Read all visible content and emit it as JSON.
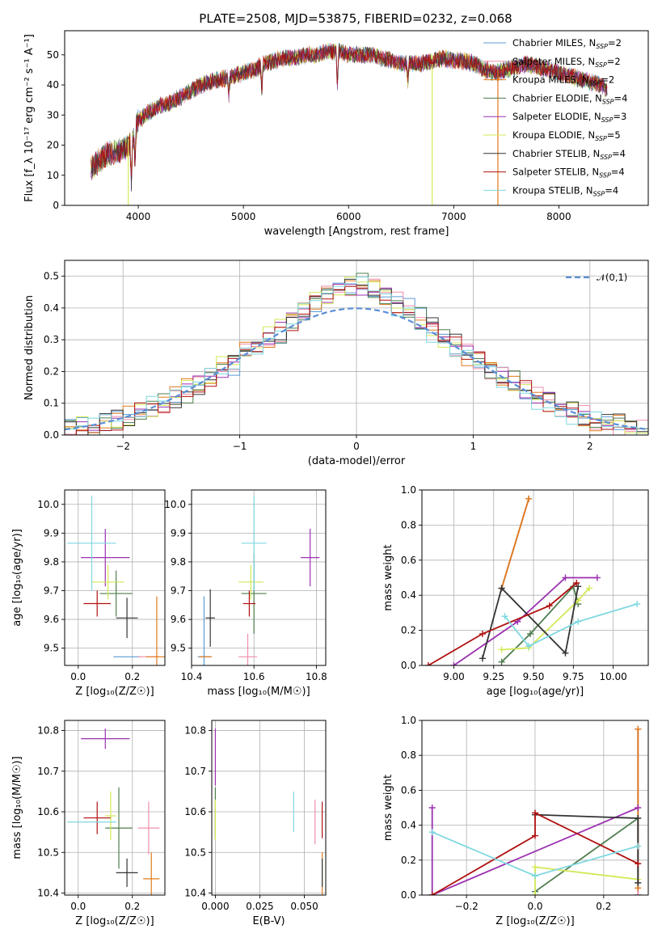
{
  "figure": {
    "title": "PLATE=2508, MJD=53875, FIBERID=0232, z=0.068",
    "colors": [
      "#5b9bd5",
      "#f08fa8",
      "#e07b1a",
      "#4e7d4e",
      "#9b30b0",
      "#d4e857",
      "#333333",
      "#b01010",
      "#7fd8e0"
    ]
  },
  "chart_data": [
    {
      "id": "spectrum",
      "type": "line",
      "title": "PLATE=2508, MJD=53875, FIBERID=0232, z=0.068",
      "xlabel": "wavelength [Angstrom, rest frame]",
      "ylabel": "Flux [f_λ 10⁻¹⁷ erg cm⁻² s⁻¹ A⁻¹]",
      "xlim": [
        3300,
        8850
      ],
      "ylim": [
        0,
        58
      ],
      "xticks": [
        4000,
        5000,
        6000,
        7000,
        8000
      ],
      "yticks": [
        0,
        10,
        20,
        30,
        40,
        50
      ],
      "grid": false,
      "legend": "upper-right",
      "continuum": {
        "x": [
          3550,
          3600,
          3700,
          3800,
          3900,
          3950,
          4000,
          4100,
          4200,
          4300,
          4400,
          4500,
          4600,
          4700,
          4800,
          4900,
          5000,
          5100,
          5200,
          5300,
          5400,
          5500,
          5600,
          5700,
          5800,
          5900,
          6000,
          6100,
          6200,
          6300,
          6400,
          6500,
          6600,
          6700,
          6800,
          6900,
          7000,
          7100,
          7200,
          7300,
          7400,
          7500,
          7600,
          7700,
          7800,
          7900,
          8000,
          8100,
          8200,
          8300,
          8400,
          8460
        ],
        "y": [
          12,
          14,
          17,
          18,
          19,
          22,
          28,
          31,
          33,
          34,
          36,
          38,
          40,
          41,
          42,
          43,
          44,
          45,
          47,
          48,
          49,
          49,
          50,
          50,
          51,
          51,
          50,
          50,
          50,
          49,
          48,
          47,
          47,
          47,
          48,
          49,
          48,
          48,
          47,
          45,
          44,
          45,
          46,
          47,
          46,
          45,
          44,
          43,
          42,
          41,
          40,
          38
        ]
      },
      "dips": [
        {
          "x": 3934,
          "y": 8
        },
        {
          "x": 3969,
          "y": 14
        },
        {
          "x": 4861,
          "y": 36
        },
        {
          "x": 5175,
          "y": 38
        },
        {
          "x": 5893,
          "y": 40
        },
        {
          "x": 6563,
          "y": 40
        }
      ],
      "spikes": [
        {
          "x": 3905,
          "y_min": 0,
          "y_max": 22,
          "series": 5
        },
        {
          "x": 6795,
          "y_min": 0,
          "y_max": 47,
          "series": 5
        },
        {
          "x": 7420,
          "y_min": 0,
          "y_max": 45,
          "series": 2
        }
      ],
      "series": [
        {
          "name": "Chabrier MILES, N_SSP=2"
        },
        {
          "name": "Salpeter MILES, N_SSP=2"
        },
        {
          "name": "Kroupa MILES, N_SSP=2"
        },
        {
          "name": "Chabrier ELODIE, N_SSP=4"
        },
        {
          "name": "Salpeter ELODIE, N_SSP=3"
        },
        {
          "name": "Kroupa ELODIE, N_SSP=5"
        },
        {
          "name": "Chabrier STELIB, N_SSP=4"
        },
        {
          "name": "Salpeter STELIB, N_SSP=4"
        },
        {
          "name": "Kroupa STELIB, N_SSP=4"
        }
      ]
    },
    {
      "id": "residuals",
      "type": "line",
      "xlabel": "(data-model)/error",
      "ylabel": "Normed distribution",
      "xlim": [
        -2.5,
        2.5
      ],
      "ylim": [
        0,
        0.55
      ],
      "xticks": [
        -2,
        -1,
        0,
        1,
        2
      ],
      "yticks": [
        0.0,
        0.1,
        0.2,
        0.3,
        0.4,
        0.5
      ],
      "grid": true,
      "legend": "upper-right",
      "bin_width": 0.1,
      "gaussian": {
        "label": "𝒩(0,1)",
        "mean": 0,
        "sigma": 1
      },
      "spread": 0.035
    },
    {
      "id": "age-vs-z",
      "type": "scatter",
      "xlabel": "Z [log₁₀(Z/Z☉)]",
      "ylabel": "age  [log₁₀(age/yr)]",
      "xlim": [
        -0.05,
        0.32
      ],
      "ylim": [
        9.44,
        10.05
      ],
      "xticks": [
        0.0,
        0.2
      ],
      "yticks": [
        9.5,
        9.6,
        9.7,
        9.8,
        9.9,
        10.0
      ],
      "grid": true,
      "points": [
        {
          "x": 0.18,
          "y": 9.47,
          "xerr": 0.05,
          "yerr": 0.0,
          "series": 0
        },
        {
          "x": 0.26,
          "y": 9.47,
          "xerr": 0.04,
          "yerr": 0.0,
          "series": 1
        },
        {
          "x": 0.29,
          "y": 9.47,
          "xerr": 0.04,
          "yerr": 0.21,
          "series": 2
        },
        {
          "x": 0.14,
          "y": 9.69,
          "xerr": 0.06,
          "yerr": 0.08,
          "series": 3
        },
        {
          "x": 0.1,
          "y": 9.815,
          "xerr": 0.09,
          "yerr": 0.1,
          "series": 4
        },
        {
          "x": 0.11,
          "y": 9.73,
          "xerr": 0.06,
          "yerr": 0.06,
          "series": 5
        },
        {
          "x": 0.18,
          "y": 9.605,
          "xerr": 0.04,
          "yerr": 0.07,
          "series": 6
        },
        {
          "x": 0.07,
          "y": 9.655,
          "xerr": 0.05,
          "yerr": 0.045,
          "series": 7
        },
        {
          "x": 0.05,
          "y": 9.865,
          "xerr": 0.09,
          "yerr": 0.165,
          "series": 8
        }
      ]
    },
    {
      "id": "age-vs-mass",
      "type": "scatter",
      "xlabel": "mass [log₁₀(M/M☉)]",
      "ylabel": "",
      "xlim": [
        10.4,
        10.83
      ],
      "ylim": [
        9.44,
        10.05
      ],
      "xticks": [
        10.4,
        10.6,
        10.8
      ],
      "yticks": [
        9.5,
        9.6,
        9.7,
        9.8,
        9.9,
        10.0
      ],
      "grid": true,
      "points": [
        {
          "x": 10.44,
          "y": 9.47,
          "xerr": 0.02,
          "yerr": 0.21,
          "series": 0
        },
        {
          "x": 10.58,
          "y": 9.47,
          "xerr": 0.03,
          "yerr": 0.08,
          "series": 1
        },
        {
          "x": 10.445,
          "y": 9.47,
          "xerr": 0.02,
          "yerr": 0.0,
          "series": 2
        },
        {
          "x": 10.6,
          "y": 9.69,
          "xerr": 0.04,
          "yerr": 0.14,
          "series": 3
        },
        {
          "x": 10.78,
          "y": 9.815,
          "xerr": 0.03,
          "yerr": 0.1,
          "series": 4
        },
        {
          "x": 10.59,
          "y": 9.73,
          "xerr": 0.04,
          "yerr": 0.06,
          "series": 5
        },
        {
          "x": 10.46,
          "y": 9.605,
          "xerr": 0.015,
          "yerr": 0.1,
          "series": 6
        },
        {
          "x": 10.585,
          "y": 9.655,
          "xerr": 0.02,
          "yerr": 0.045,
          "series": 7
        },
        {
          "x": 10.6,
          "y": 9.865,
          "xerr": 0.04,
          "yerr": 0.165,
          "series": 8
        }
      ]
    },
    {
      "id": "weight-vs-age",
      "type": "line",
      "xlabel": "age  [log₁₀(age/yr)]",
      "ylabel": "mass weight",
      "xlim": [
        8.8,
        10.22
      ],
      "ylim": [
        0,
        1.0
      ],
      "xticks": [
        9.0,
        9.25,
        9.5,
        9.75,
        10.0
      ],
      "yticks": [
        0.0,
        0.2,
        0.4,
        0.6,
        0.8,
        1.0
      ],
      "grid": true,
      "lines": [
        {
          "series": 0,
          "x": [
            9.3,
            9.47
          ],
          "y": [
            0.44,
            0.95
          ]
        },
        {
          "series": 1,
          "x": [
            9.3,
            9.47
          ],
          "y": [
            0.44,
            0.95
          ]
        },
        {
          "series": 2,
          "x": [
            9.3,
            9.47
          ],
          "y": [
            0.44,
            0.95
          ]
        },
        {
          "series": 3,
          "x": [
            9.3,
            9.48,
            9.75,
            9.78
          ],
          "y": [
            0.02,
            0.18,
            0.45,
            0.35
          ]
        },
        {
          "series": 4,
          "x": [
            9.0,
            9.4,
            9.7,
            9.9
          ],
          "y": [
            0.0,
            0.25,
            0.5,
            0.5
          ]
        },
        {
          "series": 5,
          "x": [
            9.3,
            9.47,
            9.78,
            9.85
          ],
          "y": [
            0.09,
            0.1,
            0.37,
            0.44
          ]
        },
        {
          "series": 6,
          "x": [
            9.18,
            9.3,
            9.7,
            9.78
          ],
          "y": [
            0.04,
            0.44,
            0.07,
            0.45
          ]
        },
        {
          "series": 7,
          "x": [
            8.84,
            9.18,
            9.6,
            9.77
          ],
          "y": [
            0.0,
            0.18,
            0.34,
            0.47
          ]
        },
        {
          "series": 8,
          "x": [
            9.32,
            9.47,
            9.78,
            10.15
          ],
          "y": [
            0.28,
            0.11,
            0.25,
            0.35
          ]
        }
      ]
    },
    {
      "id": "mass-vs-z",
      "type": "scatter",
      "xlabel": "Z [log₁₀(Z/Z☉)]",
      "ylabel": "mass [log₁₀(M/M☉)]",
      "xlim": [
        -0.05,
        0.32
      ],
      "ylim": [
        10.395,
        10.825
      ],
      "xticks": [
        0.0,
        0.2
      ],
      "yticks": [
        10.4,
        10.5,
        10.6,
        10.7,
        10.8
      ],
      "grid": true,
      "points": [
        {
          "x": 0.05,
          "y": 10.575,
          "xerr": 0.09,
          "yerr": 0.0,
          "series": 0
        },
        {
          "x": 0.26,
          "y": 10.56,
          "xerr": 0.04,
          "yerr": 0.065,
          "series": 1
        },
        {
          "x": 0.27,
          "y": 10.435,
          "xerr": 0.03,
          "yerr": 0.065,
          "series": 2
        },
        {
          "x": 0.15,
          "y": 10.56,
          "xerr": 0.05,
          "yerr": 0.1,
          "series": 3
        },
        {
          "x": 0.1,
          "y": 10.78,
          "xerr": 0.09,
          "yerr": 0.025,
          "series": 4
        },
        {
          "x": 0.12,
          "y": 10.59,
          "xerr": 0.02,
          "yerr": 0.06,
          "series": 5
        },
        {
          "x": 0.18,
          "y": 10.45,
          "xerr": 0.04,
          "yerr": 0.035,
          "series": 6
        },
        {
          "x": 0.07,
          "y": 10.585,
          "xerr": 0.05,
          "yerr": 0.04,
          "series": 7
        },
        {
          "x": 0.05,
          "y": 10.575,
          "xerr": 0.09,
          "yerr": 0.0,
          "series": 8
        }
      ]
    },
    {
      "id": "mass-vs-ebv",
      "type": "scatter",
      "xlabel": "E(B-V)",
      "ylabel": "",
      "xlim": [
        -0.002,
        0.062
      ],
      "ylim": [
        10.395,
        10.825
      ],
      "xticks": [
        0.0,
        0.025,
        0.05
      ],
      "yticks": [
        10.4,
        10.5,
        10.6,
        10.7,
        10.8
      ],
      "grid": true,
      "points": [
        {
          "x": 0.0,
          "y": 10.57,
          "xerr": 0.0,
          "yerr": 0.04,
          "series": 0
        },
        {
          "x": 0.056,
          "y": 10.575,
          "xerr": 0.0,
          "yerr": 0.055,
          "series": 1
        },
        {
          "x": 0.06,
          "y": 10.44,
          "xerr": 0.0,
          "yerr": 0.06,
          "series": 2
        },
        {
          "x": 0.0,
          "y": 10.6,
          "xerr": 0.0,
          "yerr": 0.06,
          "series": 3
        },
        {
          "x": 0.0,
          "y": 10.735,
          "xerr": 0.0,
          "yerr": 0.07,
          "series": 4
        },
        {
          "x": 0.0,
          "y": 10.58,
          "xerr": 0.0,
          "yerr": 0.05,
          "series": 5
        },
        {
          "x": 0.06,
          "y": 10.45,
          "xerr": 0.0,
          "yerr": 0.035,
          "series": 6
        },
        {
          "x": 0.06,
          "y": 10.58,
          "xerr": 0.0,
          "yerr": 0.045,
          "series": 7
        },
        {
          "x": 0.044,
          "y": 10.6,
          "xerr": 0.0,
          "yerr": 0.05,
          "series": 8
        }
      ]
    },
    {
      "id": "weight-vs-z",
      "type": "line",
      "xlabel": "Z [log₁₀(Z/Z☉)]",
      "ylabel": "mass weight",
      "xlim": [
        -0.33,
        0.33
      ],
      "ylim": [
        0,
        1.0
      ],
      "xticks": [
        -0.2,
        0.0,
        0.2
      ],
      "yticks": [
        0.0,
        0.2,
        0.4,
        0.6,
        0.8,
        1.0
      ],
      "grid": true,
      "lines": [
        {
          "series": 0,
          "x": [
            0.3,
            0.3
          ],
          "y": [
            0.0,
            0.95
          ]
        },
        {
          "series": 1,
          "x": [
            0.3,
            0.3
          ],
          "y": [
            0.0,
            0.95
          ]
        },
        {
          "series": 2,
          "x": [
            0.3,
            0.3
          ],
          "y": [
            0.04,
            0.95
          ]
        },
        {
          "series": 3,
          "x": [
            0.0,
            0.3
          ],
          "y": [
            0.02,
            0.44
          ]
        },
        {
          "series": 4,
          "x": [
            -0.3,
            -0.3,
            0.3
          ],
          "y": [
            0.5,
            0.0,
            0.5
          ]
        },
        {
          "series": 5,
          "x": [
            0.0,
            0.0,
            0.3
          ],
          "y": [
            0.0,
            0.16,
            0.09
          ]
        },
        {
          "series": 6,
          "x": [
            0.0,
            0.3,
            0.3
          ],
          "y": [
            0.46,
            0.44,
            0.07
          ]
        },
        {
          "series": 7,
          "x": [
            -0.3,
            0.0,
            0.0,
            0.3
          ],
          "y": [
            0.0,
            0.34,
            0.47,
            0.18
          ]
        },
        {
          "series": 8,
          "x": [
            -0.3,
            0.0,
            0.3
          ],
          "y": [
            0.36,
            0.11,
            0.28
          ]
        }
      ]
    }
  ]
}
